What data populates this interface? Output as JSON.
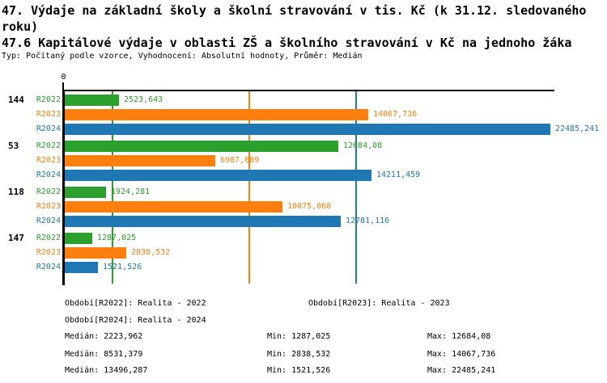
{
  "title": {
    "line1": "47. Výdaje na základní školy a školní stravování v tis. Kč (k 31.12. sledovaného roku)",
    "line2": "47.6 Kapitálové výdaje v oblasti ZŠ a školního stravování v Kč na jednoho žáka",
    "meta": "Typ: Počítaný podle vzorce, Vyhodnocení: Absolutní hodnoty, Průměr: Medián"
  },
  "colors": {
    "r2022": "#2CA02C",
    "r2023": "#FF7F0E",
    "r2024": "#1F77B4",
    "axis": "#000000"
  },
  "chart_data": {
    "type": "bar",
    "orientation": "horizontal",
    "xlim": [
      0,
      22600
    ],
    "x_tick_labels": [
      "0"
    ],
    "grid": "median-lines-only",
    "series": [
      "R2022",
      "R2023",
      "R2024"
    ],
    "series_colors": {
      "R2022": "#2CA02C",
      "R2023": "#FF7F0E",
      "R2024": "#1F77B4"
    },
    "groups": [
      {
        "label": "144",
        "bars": [
          {
            "series": "R2022",
            "value": 2523.643,
            "display": "2523,643"
          },
          {
            "series": "R2023",
            "value": 14067.736,
            "display": "14067,736"
          },
          {
            "series": "R2024",
            "value": 22485.241,
            "display": "22485,241"
          }
        ]
      },
      {
        "label": "53",
        "bars": [
          {
            "series": "R2022",
            "value": 12684.08,
            "display": "12684,08"
          },
          {
            "series": "R2023",
            "value": 6987.689,
            "display": "6987,689"
          },
          {
            "series": "R2024",
            "value": 14211.459,
            "display": "14211,459"
          }
        ]
      },
      {
        "label": "118",
        "bars": [
          {
            "series": "R2022",
            "value": 1924.281,
            "display": "1924,281"
          },
          {
            "series": "R2023",
            "value": 10075.068,
            "display": "10075,068"
          },
          {
            "series": "R2024",
            "value": 12781.116,
            "display": "12781,116"
          }
        ]
      },
      {
        "label": "147",
        "bars": [
          {
            "series": "R2022",
            "value": 1287.025,
            "display": "1287,025"
          },
          {
            "series": "R2023",
            "value": 2838.532,
            "display": "2838,532"
          },
          {
            "series": "R2024",
            "value": 1521.526,
            "display": "1521,526"
          }
        ]
      }
    ],
    "median_lines": [
      {
        "series": "R2022",
        "value": 2223.962
      },
      {
        "series": "R2023",
        "value": 8531.379
      },
      {
        "series": "R2024",
        "value": 13496.287
      }
    ]
  },
  "legend": {
    "items": [
      {
        "series": "R2022",
        "label": "Období[R2022]: Realita - 2022"
      },
      {
        "series": "R2023",
        "label": "Období[R2023]: Realita - 2023"
      },
      {
        "series": "R2024",
        "label": "Období[R2024]: Realita - 2024"
      }
    ]
  },
  "stats": {
    "rows": [
      {
        "series": "R2022",
        "median": "Medián: 2223,962",
        "min": "Min: 1287,025",
        "max": "Max: 12684,08"
      },
      {
        "series": "R2023",
        "median": "Medián: 8531,379",
        "min": "Min: 2838,532",
        "max": "Max: 14067,736"
      },
      {
        "series": "R2024",
        "median": "Medián: 13496,287",
        "min": "Min: 1521,526",
        "max": "Max: 22485,241"
      }
    ]
  }
}
